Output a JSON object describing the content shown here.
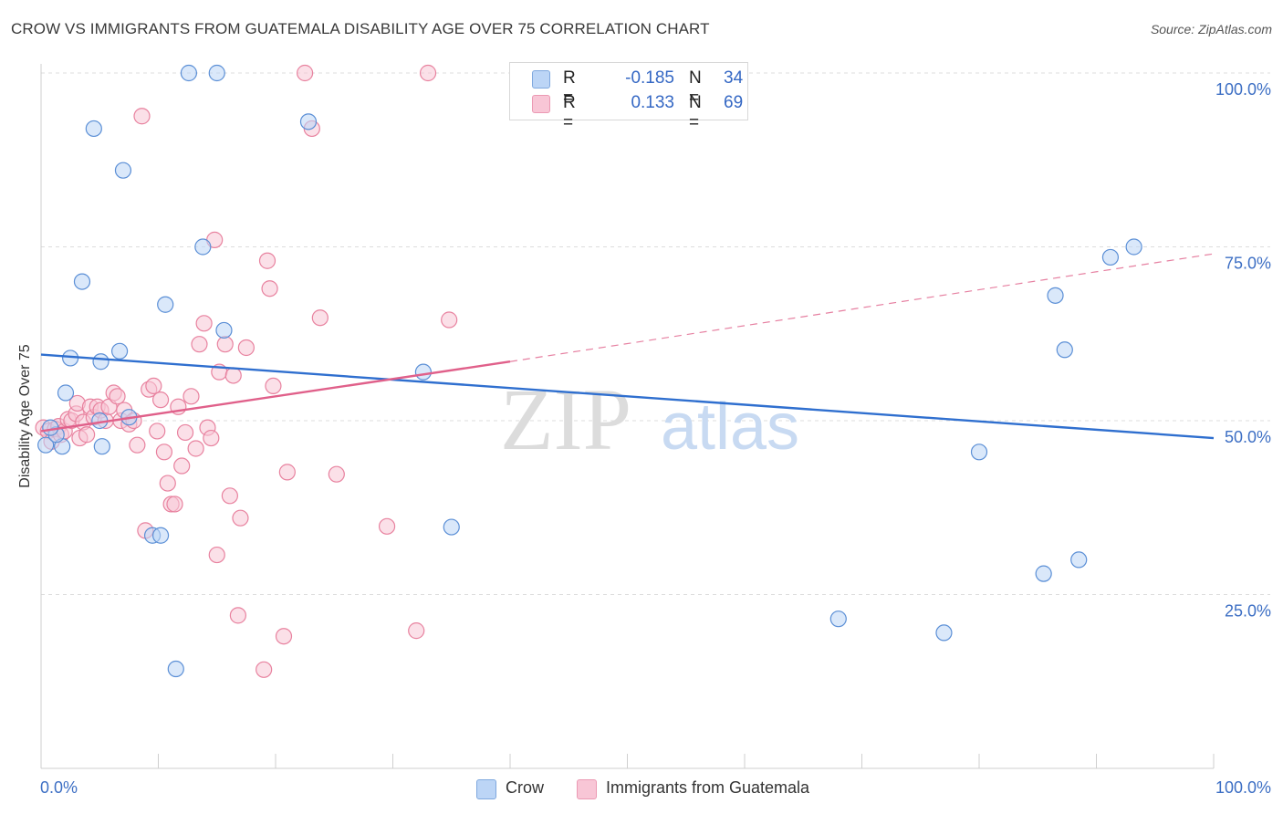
{
  "title": "CROW VS IMMIGRANTS FROM GUATEMALA DISABILITY AGE OVER 75 CORRELATION CHART",
  "source": "Source: ZipAtlas.com",
  "watermark": {
    "zip": "ZIP",
    "atlas": "atlas"
  },
  "legend": {
    "rows": [
      {
        "r_label": "R =",
        "r_value": "-0.185",
        "n_label": "N =",
        "n_value": "34",
        "color": "#aac8f0"
      },
      {
        "r_label": "R =",
        "r_value": "0.133",
        "n_label": "N =",
        "n_value": "69",
        "color": "#f6b8cc"
      }
    ]
  },
  "bottom_legend": [
    {
      "label": "Crow",
      "color": "#bcd5f6"
    },
    {
      "label": "Immigrants from Guatemala",
      "color": "#f8c6d6"
    }
  ],
  "chart_data": {
    "type": "scatter",
    "title": "CROW VS IMMIGRANTS FROM GUATEMALA DISABILITY AGE OVER 75 CORRELATION CHART",
    "xlabel": "",
    "ylabel": "Disability Age Over 75",
    "xlim": [
      0,
      100
    ],
    "ylim": [
      0,
      105
    ],
    "x_tick_labels": [
      "0.0%",
      "100.0%"
    ],
    "y_ticks": [
      {
        "value": 25,
        "label": "25.0%"
      },
      {
        "value": 50,
        "label": "50.0%"
      },
      {
        "value": 75,
        "label": "75.0%"
      },
      {
        "value": 100,
        "label": "100.0%"
      }
    ],
    "grid": "horizontal-dashed",
    "series": [
      {
        "name": "Crow",
        "color": "#5b8fd6",
        "fill": "#bcd5f6",
        "trend": {
          "x0": 0,
          "y0": 59.5,
          "x1": 100,
          "y1": 47.5,
          "style": "solid",
          "color": "#2f6fcf"
        },
        "points": [
          [
            0.4,
            46.5
          ],
          [
            1.8,
            46.3
          ],
          [
            2.1,
            54.0
          ],
          [
            2.5,
            59.0
          ],
          [
            3.5,
            70.0
          ],
          [
            5.0,
            50.0
          ],
          [
            5.1,
            58.5
          ],
          [
            5.2,
            46.3
          ],
          [
            7.0,
            86.0
          ],
          [
            6.7,
            60.0
          ],
          [
            4.5,
            92.0
          ],
          [
            9.5,
            33.5
          ],
          [
            10.2,
            33.5
          ],
          [
            12.6,
            100.0
          ],
          [
            15.0,
            100.0
          ],
          [
            10.6,
            66.7
          ],
          [
            11.5,
            14.3
          ],
          [
            13.8,
            75.0
          ],
          [
            15.6,
            63.0
          ],
          [
            22.8,
            93.0
          ],
          [
            32.6,
            57.0
          ],
          [
            35.0,
            34.7
          ],
          [
            1.3,
            48.0
          ],
          [
            0.8,
            49.0
          ],
          [
            68.0,
            21.5
          ],
          [
            77.0,
            19.5
          ],
          [
            80.0,
            45.5
          ],
          [
            85.5,
            28.0
          ],
          [
            86.5,
            68.0
          ],
          [
            87.3,
            60.2
          ],
          [
            88.5,
            30.0
          ],
          [
            91.2,
            73.5
          ],
          [
            93.2,
            75.0
          ],
          [
            7.5,
            50.5
          ]
        ]
      },
      {
        "name": "Immigrants from Guatemala",
        "color": "#e8829f",
        "fill": "#f8c6d6",
        "trend": {
          "x0": 0,
          "y0": 48.5,
          "x1": 40,
          "y1": 58.5,
          "style": "solid",
          "color": "#e0608a",
          "ext_x1": 100,
          "ext_y1": 74.0,
          "ext_style": "dashed"
        },
        "points": [
          [
            0.2,
            49.0
          ],
          [
            0.6,
            48.5
          ],
          [
            0.9,
            47.0
          ],
          [
            1.2,
            48.8
          ],
          [
            1.5,
            49.2
          ],
          [
            1.7,
            48.0
          ],
          [
            2.0,
            48.5
          ],
          [
            2.3,
            50.2
          ],
          [
            2.6,
            50.0
          ],
          [
            3.0,
            51.0
          ],
          [
            3.1,
            52.5
          ],
          [
            3.3,
            47.5
          ],
          [
            3.6,
            49.8
          ],
          [
            3.9,
            48.0
          ],
          [
            4.2,
            52.0
          ],
          [
            4.5,
            50.5
          ],
          [
            4.8,
            52.0
          ],
          [
            5.1,
            51.5
          ],
          [
            5.5,
            50.0
          ],
          [
            5.8,
            52.0
          ],
          [
            6.2,
            54.0
          ],
          [
            6.5,
            53.5
          ],
          [
            6.8,
            50.0
          ],
          [
            7.1,
            51.5
          ],
          [
            7.5,
            49.5
          ],
          [
            7.9,
            50.0
          ],
          [
            8.2,
            46.5
          ],
          [
            8.6,
            93.8
          ],
          [
            8.9,
            34.2
          ],
          [
            9.2,
            54.5
          ],
          [
            9.6,
            55.0
          ],
          [
            9.9,
            48.5
          ],
          [
            10.2,
            53.0
          ],
          [
            10.5,
            45.5
          ],
          [
            10.8,
            41.0
          ],
          [
            11.1,
            38.0
          ],
          [
            11.4,
            38.0
          ],
          [
            11.7,
            52.0
          ],
          [
            12.0,
            43.5
          ],
          [
            12.3,
            48.3
          ],
          [
            12.8,
            53.5
          ],
          [
            13.2,
            46.0
          ],
          [
            13.5,
            61.0
          ],
          [
            13.9,
            64.0
          ],
          [
            14.2,
            49.0
          ],
          [
            14.5,
            47.5
          ],
          [
            14.8,
            76.0
          ],
          [
            15.0,
            30.7
          ],
          [
            15.2,
            57.0
          ],
          [
            15.7,
            61.0
          ],
          [
            16.1,
            39.2
          ],
          [
            16.4,
            56.5
          ],
          [
            16.8,
            22.0
          ],
          [
            17.0,
            36.0
          ],
          [
            17.5,
            60.5
          ],
          [
            19.0,
            14.2
          ],
          [
            19.3,
            73.0
          ],
          [
            19.5,
            69.0
          ],
          [
            19.8,
            55.0
          ],
          [
            20.7,
            19.0
          ],
          [
            21.0,
            42.6
          ],
          [
            22.5,
            100.0
          ],
          [
            23.1,
            92.0
          ],
          [
            23.8,
            64.8
          ],
          [
            25.2,
            42.3
          ],
          [
            29.5,
            34.8
          ],
          [
            32.0,
            19.8
          ],
          [
            33.0,
            100.0
          ],
          [
            34.8,
            64.5
          ]
        ]
      }
    ]
  }
}
